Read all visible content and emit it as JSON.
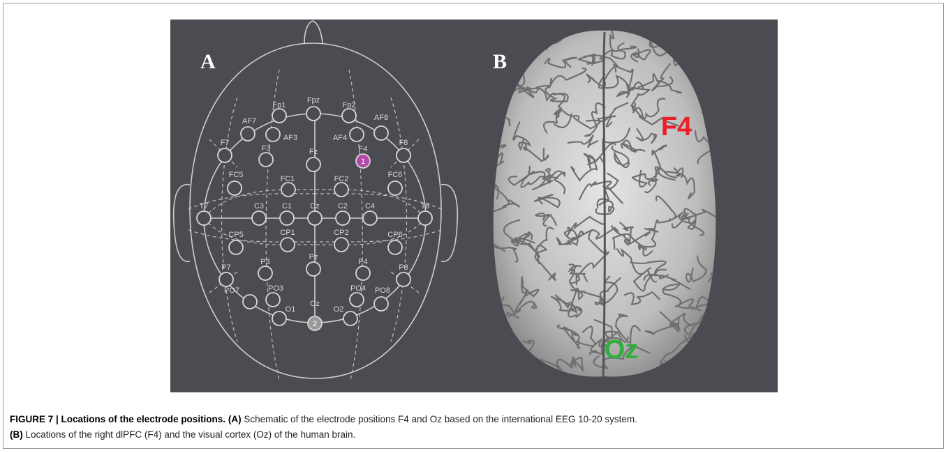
{
  "panel_a": {
    "label": "A",
    "electrodes": [
      "Fp1",
      "Fpz",
      "Fp2",
      "AF7",
      "AF3",
      "AF4",
      "AF8",
      "F7",
      "F3",
      "Fz",
      "F4",
      "F8",
      "FC5",
      "FC1",
      "FC2",
      "FC6",
      "T7",
      "C3",
      "C1",
      "Cz",
      "C2",
      "C4",
      "T8",
      "CP5",
      "CP1",
      "CP2",
      "CP6",
      "P7",
      "P3",
      "Pz",
      "P4",
      "P8",
      "PO7",
      "PO3",
      "PO4",
      "PO8",
      "O1",
      "Oz",
      "O2"
    ],
    "markers": [
      "1",
      "2"
    ]
  },
  "panel_b": {
    "label": "B",
    "annotations": [
      "F4",
      "Oz"
    ]
  },
  "caption": {
    "figure_label": "FIGURE 7 | Locations of the electrode positions.",
    "a_label": "(A)",
    "a_text": "Schematic of the electrode positions F4 and Oz based on the international EEG 10-20 system.",
    "b_label": "(B)",
    "b_text": "Locations of the right dlPFC (F4) and the visual cortex (Oz) of the human brain."
  }
}
